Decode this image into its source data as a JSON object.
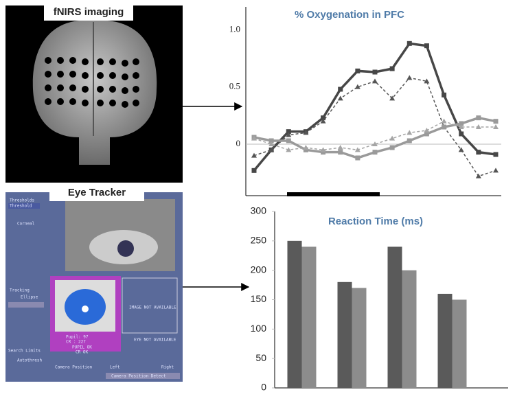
{
  "panels": {
    "fnirs": {
      "label": "fNIRS imaging"
    },
    "eye_tracker": {
      "label": "Eye Tracker",
      "texts": [
        "Thresholds",
        "Threshold",
        "Corneal",
        "Tracking",
        "Ellipse",
        "Pupil: 97",
        "CR : 227",
        "PUPIL OK",
        "CR OK",
        "IMAGE NOT AVAILABLE",
        "EYE NOT AVAILABLE",
        "Search Limits",
        "Autothresh",
        "Camera Position",
        "Left",
        "Right",
        "Camera Position Detect"
      ]
    }
  },
  "chart_data": [
    {
      "type": "line",
      "title": "% Oxygenation in PFC",
      "categories": [
        null,
        null,
        null,
        null,
        null,
        null,
        null,
        null,
        null,
        null,
        null,
        null,
        null,
        null,
        null
      ],
      "ylim": [
        -0.45,
        1.2
      ],
      "yticks": [
        0,
        0.5,
        {
          "value": 1,
          "label": "1.0"
        }
      ],
      "series": [
        {
          "color": "#474747",
          "style": "solid",
          "values": [
            -0.23,
            -0.05,
            0.11,
            0.11,
            0.23,
            0.48,
            0.64,
            0.63,
            0.66,
            0.88,
            0.86,
            0.43,
            0.09,
            -0.07,
            -0.09
          ]
        },
        {
          "color": "#555555",
          "style": "dashed",
          "values": [
            -0.1,
            -0.05,
            0.08,
            0.1,
            0.2,
            0.4,
            0.5,
            0.55,
            0.4,
            0.58,
            0.55,
            0.15,
            -0.05,
            -0.28,
            -0.23
          ]
        },
        {
          "color": "#9a9a9a",
          "style": "solid",
          "values": [
            0.06,
            0.03,
            0.03,
            -0.05,
            -0.07,
            -0.07,
            -0.12,
            -0.07,
            -0.03,
            0.03,
            0.09,
            0.15,
            0.18,
            0.23,
            0.2
          ]
        },
        {
          "color": "#a5a5a5",
          "style": "dashed",
          "values": [
            0.05,
            0,
            -0.05,
            -0.03,
            -0.05,
            -0.03,
            -0.05,
            0,
            0.05,
            0.1,
            0.12,
            0.2,
            0.15,
            0.15,
            0.15
          ]
        }
      ]
    },
    {
      "type": "bar",
      "title": "Reaction Time (ms)",
      "categories": [
        null,
        null,
        null,
        null
      ],
      "ylim": [
        0,
        300
      ],
      "yticks": [
        0,
        50,
        100,
        150,
        200,
        250,
        300
      ],
      "series": [
        {
          "color": "#5a5a5a",
          "values": [
            250,
            180,
            240,
            160
          ]
        },
        {
          "color": "#8c8c8c",
          "values": [
            240,
            170,
            200,
            150
          ]
        }
      ]
    }
  ]
}
